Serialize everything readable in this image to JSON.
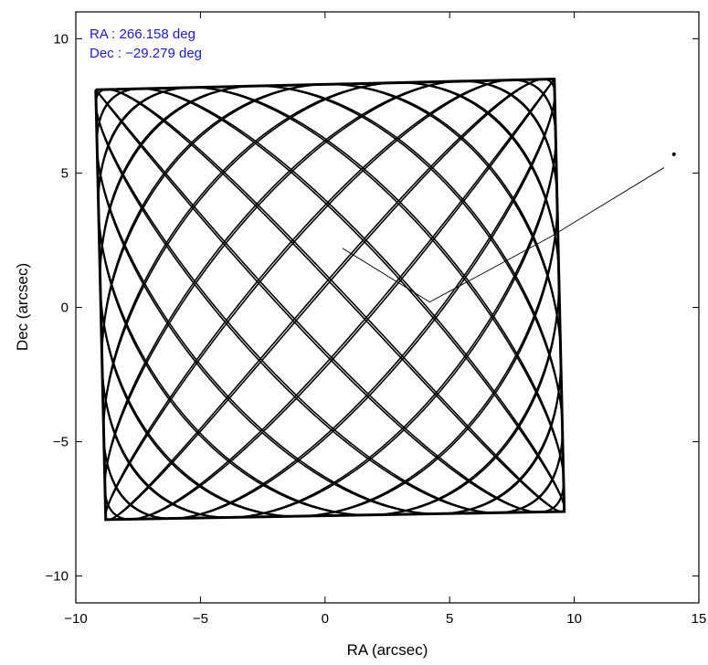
{
  "chart_data": {
    "type": "line",
    "title": "",
    "xlabel": "RA (arcsec)",
    "ylabel": "Dec (arcsec)",
    "xlim": [
      -10,
      15
    ],
    "ylim": [
      -11,
      11
    ],
    "xticks": [
      -10,
      -5,
      0,
      5,
      10,
      15
    ],
    "yticks": [
      -10,
      -5,
      0,
      5,
      10
    ],
    "xtick_labels": [
      "−10",
      "−5",
      "0",
      "5",
      "10",
      "15"
    ],
    "ytick_labels": [
      "−10",
      "−5",
      "0",
      "5",
      "10"
    ],
    "grid": false,
    "annotations": [
      "RA : 266.158 deg",
      "Dec : −29.279 deg"
    ],
    "annotation_color": "#1a1adf",
    "line_color": "#000000",
    "series": [
      {
        "style": "lissajous-raster",
        "corners": [
          [
            -9.2,
            8.1
          ],
          [
            9.2,
            8.5
          ],
          [
            9.6,
            -7.6
          ],
          [
            -8.8,
            -7.9
          ]
        ],
        "a": 17,
        "b": 20,
        "phase": 0.7
      },
      {
        "style": "slew-track",
        "x": [
          0.7,
          4.2,
          9.0,
          13.6
        ],
        "y": [
          2.2,
          0.2,
          2.6,
          5.2
        ]
      },
      {
        "style": "point",
        "x": [
          14.0
        ],
        "y": [
          5.7
        ]
      }
    ]
  },
  "annotation": {
    "ra": "RA : 266.158 deg",
    "dec": "Dec : −29.279 deg"
  }
}
